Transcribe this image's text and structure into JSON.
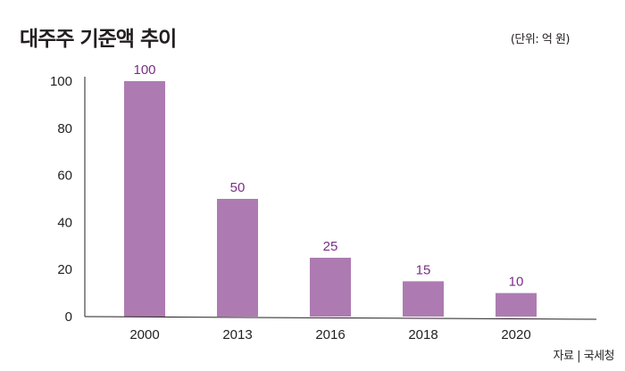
{
  "title": "대주주 기준액 추이",
  "unit_note": "(단위: 억 원)",
  "source_note": "자료 | 국세청",
  "chart_data": {
    "type": "bar",
    "categories": [
      "2000",
      "2013",
      "2016",
      "2018",
      "2020"
    ],
    "values": [
      100,
      50,
      25,
      15,
      10
    ],
    "data_labels": [
      "100",
      "50",
      "25",
      "15",
      "10"
    ],
    "ylim": [
      0,
      100
    ],
    "yticks": [
      0,
      20,
      40,
      60,
      80,
      100
    ],
    "ytick_labels": [
      "0",
      "20",
      "40",
      "60",
      "80",
      "100"
    ],
    "grid": false,
    "legend": "none",
    "bar_color": "#ad7bb1",
    "label_color": "#7a2e86",
    "axis_color": "#231f20"
  }
}
